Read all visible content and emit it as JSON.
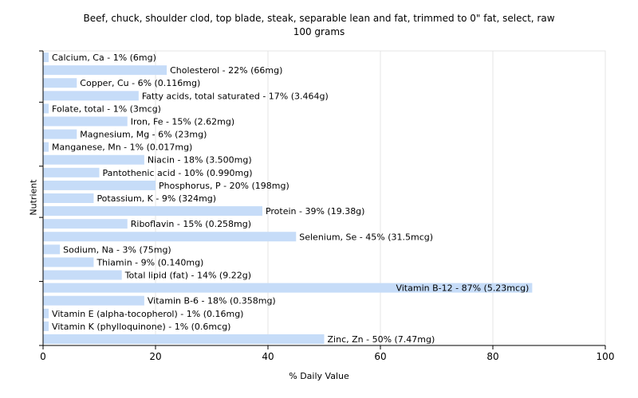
{
  "chart_data": {
    "type": "bar",
    "orientation": "horizontal",
    "title": "Beef, chuck, shoulder clod, top blade, steak, separable lean and fat, trimmed to 0\" fat, select, raw",
    "subtitle": "100 grams",
    "xlabel": "% Daily Value",
    "ylabel": "Nutrient",
    "xlim": [
      0,
      100
    ],
    "xticks": [
      "0",
      "20",
      "40",
      "60",
      "80",
      "100"
    ],
    "grid": true,
    "bar_color": "#c6dcf8",
    "categories": [
      "Calcium, Ca",
      "Cholesterol",
      "Copper, Cu",
      "Fatty acids, total saturated",
      "Folate, total",
      "Iron, Fe",
      "Magnesium, Mg",
      "Manganese, Mn",
      "Niacin",
      "Pantothenic acid",
      "Phosphorus, P",
      "Potassium, K",
      "Protein",
      "Riboflavin",
      "Selenium, Se",
      "Sodium, Na",
      "Thiamin",
      "Total lipid (fat)",
      "Vitamin B-12",
      "Vitamin B-6",
      "Vitamin E (alpha-tocopherol)",
      "Vitamin K (phylloquinone)",
      "Zinc, Zn"
    ],
    "values": [
      1,
      22,
      6,
      17,
      1,
      15,
      6,
      1,
      18,
      10,
      20,
      9,
      39,
      15,
      45,
      3,
      9,
      14,
      87,
      18,
      1,
      1,
      50
    ],
    "labels": [
      "Calcium, Ca - 1% (6mg)",
      "Cholesterol - 22% (66mg)",
      "Copper, Cu - 6% (0.116mg)",
      "Fatty acids, total saturated - 17% (3.464g)",
      "Folate, total - 1% (3mcg)",
      "Iron, Fe - 15% (2.62mg)",
      "Magnesium, Mg - 6% (23mg)",
      "Manganese, Mn - 1% (0.017mg)",
      "Niacin - 18% (3.500mg)",
      "Pantothenic acid - 10% (0.990mg)",
      "Phosphorus, P - 20% (198mg)",
      "Potassium, K - 9% (324mg)",
      "Protein - 39% (19.38g)",
      "Riboflavin - 15% (0.258mg)",
      "Selenium, Se - 45% (31.5mcg)",
      "Sodium, Na - 3% (75mg)",
      "Thiamin - 9% (0.140mg)",
      "Total lipid (fat) - 14% (9.22g)",
      "Vitamin B-12 - 87% (5.23mcg)",
      "Vitamin B-6 - 18% (0.358mg)",
      "Vitamin E (alpha-tocopherol) - 1% (0.16mg)",
      "Vitamin K (phylloquinone) - 1% (0.6mcg)",
      "Zinc, Zn - 50% (7.47mg)"
    ]
  }
}
